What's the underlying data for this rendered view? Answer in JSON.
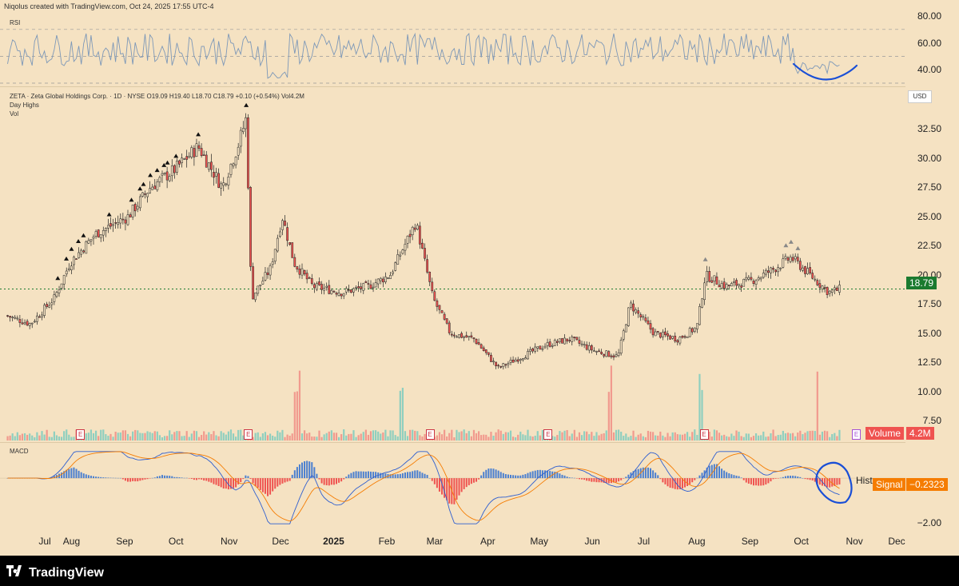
{
  "header": {
    "credit": "Niqolus created with TradingView.com, Oct 24, 2025 17:55 UTC-4"
  },
  "rsi": {
    "label": "RSI",
    "ticks": [
      "80.00",
      "60.00",
      "40.00"
    ]
  },
  "instrument": {
    "line1": "ZETA · Zeta Global Holdings Corp. · 1D · NYSE  O19.09  H19.40  L18.70  C18.79  +0.10 (+0.54%)  Vol4.2M",
    "line2": "Day Highs",
    "line3": "Vol",
    "currency": "USD"
  },
  "price_axis": {
    "ticks": [
      "32.50",
      "30.00",
      "27.50",
      "25.00",
      "22.50",
      "20.00",
      "17.50",
      "15.00",
      "12.50",
      "10.00",
      "7.50"
    ],
    "last_price": "18.79",
    "last_price_color": "#1b7a2f"
  },
  "volume_tag": {
    "label": "Volume",
    "value": "4.2M",
    "color": "#ef5350"
  },
  "macd": {
    "label": "MACD",
    "hist_label": "Hist",
    "signal_label": "Signal",
    "signal_value": "−0.2323",
    "axis_tick": "−2.00",
    "signal_color": "#f57c00"
  },
  "months": [
    "Jul",
    "Aug",
    "Sep",
    "Oct",
    "Nov",
    "Dec",
    "2025",
    "Feb",
    "Mar",
    "Apr",
    "May",
    "Jun",
    "Jul",
    "Aug",
    "Sep",
    "Oct",
    "Nov",
    "Dec"
  ],
  "earnings_badge": "E",
  "brand": "TradingView",
  "colors": {
    "up": "#26a69a",
    "down": "#ef5350",
    "background": "#f5e2c2",
    "annotation": "#1a4fd6"
  },
  "chart_data": {
    "type": "candlestick",
    "title": "ZETA · Zeta Global Holdings Corp. · 1D · NYSE",
    "price_points": [
      {
        "date": "2024-06-24",
        "close": 16.5
      },
      {
        "date": "2024-07-08",
        "close": 15.8
      },
      {
        "date": "2024-07-22",
        "close": 18.0
      },
      {
        "date": "2024-07-31",
        "close": 21.0
      },
      {
        "date": "2024-08-15",
        "close": 23.5
      },
      {
        "date": "2024-09-03",
        "close": 25.0
      },
      {
        "date": "2024-09-16",
        "close": 27.5
      },
      {
        "date": "2024-09-30",
        "close": 29.0
      },
      {
        "date": "2024-10-14",
        "close": 31.0
      },
      {
        "date": "2024-10-28",
        "close": 27.5
      },
      {
        "date": "2024-11-06",
        "close": 31.0
      },
      {
        "date": "2024-11-11",
        "close": 33.5
      },
      {
        "date": "2024-11-14",
        "close": 18.0
      },
      {
        "date": "2024-11-25",
        "close": 20.5
      },
      {
        "date": "2024-12-02",
        "close": 25.0
      },
      {
        "date": "2024-12-09",
        "close": 21.0
      },
      {
        "date": "2024-12-20",
        "close": 19.0
      },
      {
        "date": "2025-01-06",
        "close": 18.5
      },
      {
        "date": "2025-01-21",
        "close": 19.0
      },
      {
        "date": "2025-02-03",
        "close": 20.0
      },
      {
        "date": "2025-02-18",
        "close": 24.5
      },
      {
        "date": "2025-02-28",
        "close": 18.0
      },
      {
        "date": "2025-03-10",
        "close": 15.0
      },
      {
        "date": "2025-03-24",
        "close": 14.5
      },
      {
        "date": "2025-04-07",
        "close": 12.0
      },
      {
        "date": "2025-04-21",
        "close": 13.0
      },
      {
        "date": "2025-05-05",
        "close": 14.0
      },
      {
        "date": "2025-05-19",
        "close": 14.5
      },
      {
        "date": "2025-06-02",
        "close": 13.5
      },
      {
        "date": "2025-06-16",
        "close": 13.0
      },
      {
        "date": "2025-06-23",
        "close": 17.5
      },
      {
        "date": "2025-07-07",
        "close": 15.0
      },
      {
        "date": "2025-07-21",
        "close": 14.5
      },
      {
        "date": "2025-08-01",
        "close": 15.5
      },
      {
        "date": "2025-08-06",
        "close": 20.0
      },
      {
        "date": "2025-08-18",
        "close": 19.0
      },
      {
        "date": "2025-09-02",
        "close": 19.5
      },
      {
        "date": "2025-09-15",
        "close": 20.5
      },
      {
        "date": "2025-09-25",
        "close": 21.5
      },
      {
        "date": "2025-10-06",
        "close": 20.0
      },
      {
        "date": "2025-10-17",
        "close": 18.5
      },
      {
        "date": "2025-10-24",
        "close": 18.79
      }
    ],
    "ylim": [
      6,
      35
    ],
    "last": {
      "open": 19.09,
      "high": 19.4,
      "low": 18.7,
      "close": 18.79,
      "change": 0.1,
      "change_pct": 0.54,
      "volume": "4.2M"
    },
    "rsi_range": [
      30,
      80
    ],
    "macd_range": [
      -2.6,
      1.6
    ]
  }
}
